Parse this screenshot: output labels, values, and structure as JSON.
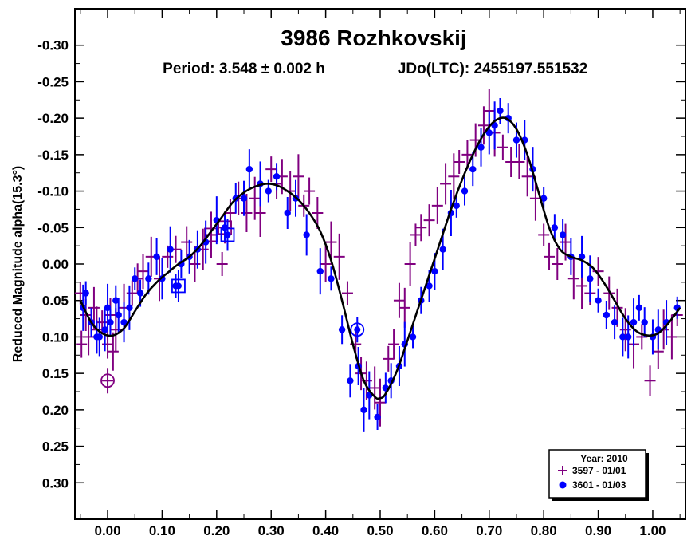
{
  "chart_data": {
    "type": "scatter",
    "title": "3986 Rozhkovskij",
    "period_text": "Period: 3.548 ± 0.002 h",
    "epoch_text": "JDo(LTC): 2455197.551532",
    "ylabel": "Reduced Magnitude alpha(15.3°)",
    "xlabel": "",
    "xlim": [
      -0.06,
      1.06
    ],
    "ylim": [
      -0.35,
      0.35
    ],
    "y_inverted": true,
    "x_ticks": [
      "0.00",
      "0.10",
      "0.20",
      "0.30",
      "0.40",
      "0.50",
      "0.60",
      "0.70",
      "0.80",
      "0.90",
      "1.00"
    ],
    "x_tick_values": [
      0,
      0.1,
      0.2,
      0.3,
      0.4,
      0.5,
      0.6,
      0.7,
      0.8,
      0.9,
      1.0
    ],
    "y_ticks": [
      "-0.30",
      "-0.25",
      "-0.20",
      "-0.15",
      "-0.10",
      "-0.05",
      "0.00",
      "0.05",
      "0.10",
      "0.15",
      "0.20",
      "0.25",
      "0.30"
    ],
    "y_tick_values": [
      -0.3,
      -0.25,
      -0.2,
      -0.15,
      -0.1,
      -0.05,
      0.0,
      0.05,
      0.1,
      0.15,
      0.2,
      0.25,
      0.3
    ],
    "legend": {
      "title": "Year: 2010",
      "placement": "bottom-right"
    },
    "colors": {
      "axis": "#000000",
      "curve": "#000000",
      "series1": "#800080",
      "series2": "#0000ff"
    },
    "series": [
      {
        "name": "3597 - 01/01",
        "marker": "plus",
        "color": "#800080",
        "points": [
          [
            -0.05,
            0.04
          ],
          [
            -0.048,
            0.11
          ],
          [
            -0.04,
            0.07
          ],
          [
            -0.035,
            0.1
          ],
          [
            -0.025,
            0.06
          ],
          [
            -0.02,
            0.09
          ],
          [
            -0.01,
            0.08
          ],
          [
            0.0,
            0.11
          ],
          [
            0.005,
            0.07
          ],
          [
            0.01,
            0.12
          ],
          [
            0.015,
            0.09
          ],
          [
            0.03,
            0.06
          ],
          [
            0.045,
            0.04
          ],
          [
            0.055,
            0.02
          ],
          [
            0.065,
            0.01
          ],
          [
            0.08,
            -0.01
          ],
          [
            0.095,
            0.02
          ],
          [
            0.11,
            -0.01
          ],
          [
            0.125,
            -0.02
          ],
          [
            0.145,
            -0.03
          ],
          [
            0.16,
            0.0
          ],
          [
            0.175,
            -0.02
          ],
          [
            0.19,
            -0.04
          ],
          [
            0.21,
            0.0
          ],
          [
            0.225,
            -0.07
          ],
          [
            0.24,
            -0.09
          ],
          [
            0.255,
            -0.07
          ],
          [
            0.27,
            -0.09
          ],
          [
            0.28,
            -0.07
          ],
          [
            0.3,
            -0.13
          ],
          [
            0.31,
            -0.11
          ],
          [
            0.32,
            -0.12
          ],
          [
            0.335,
            -0.1
          ],
          [
            0.35,
            -0.12
          ],
          [
            0.36,
            -0.08
          ],
          [
            0.37,
            -0.1
          ],
          [
            0.385,
            -0.07
          ],
          [
            0.4,
            0.0
          ],
          [
            0.41,
            -0.03
          ],
          [
            0.425,
            -0.01
          ],
          [
            0.44,
            0.04
          ],
          [
            0.455,
            0.11
          ],
          [
            0.465,
            0.15
          ],
          [
            0.475,
            0.16
          ],
          [
            0.49,
            0.17
          ],
          [
            0.5,
            0.19
          ],
          [
            0.515,
            0.13
          ],
          [
            0.525,
            0.11
          ],
          [
            0.535,
            0.05
          ],
          [
            0.545,
            0.06
          ],
          [
            0.555,
            0.0
          ],
          [
            0.565,
            -0.04
          ],
          [
            0.575,
            -0.05
          ],
          [
            0.59,
            -0.06
          ],
          [
            0.605,
            -0.08
          ],
          [
            0.62,
            -0.11
          ],
          [
            0.635,
            -0.12
          ],
          [
            0.645,
            -0.14
          ],
          [
            0.66,
            -0.15
          ],
          [
            0.675,
            -0.17
          ],
          [
            0.69,
            -0.19
          ],
          [
            0.7,
            -0.21
          ],
          [
            0.71,
            -0.18
          ],
          [
            0.725,
            -0.16
          ],
          [
            0.74,
            -0.14
          ],
          [
            0.755,
            -0.14
          ],
          [
            0.77,
            -0.12
          ],
          [
            0.785,
            -0.09
          ],
          [
            0.8,
            -0.04
          ],
          [
            0.81,
            -0.01
          ],
          [
            0.825,
            0.0
          ],
          [
            0.84,
            -0.03
          ],
          [
            0.855,
            0.02
          ],
          [
            0.87,
            0.03
          ],
          [
            0.885,
            0.04
          ],
          [
            0.9,
            0.01
          ],
          [
            0.92,
            0.04
          ],
          [
            0.935,
            0.06
          ],
          [
            0.95,
            0.09
          ],
          [
            0.965,
            0.11
          ],
          [
            0.98,
            0.1
          ],
          [
            0.995,
            0.16
          ],
          [
            1.01,
            0.12
          ],
          [
            1.02,
            0.09
          ],
          [
            1.035,
            0.1
          ],
          [
            1.045,
            0.07
          ]
        ],
        "circled": [
          [
            0.0,
            0.16
          ]
        ],
        "boxed": [
          [
            0.19,
            -0.04
          ],
          [
            0.215,
            -0.05
          ]
        ]
      },
      {
        "name": "3601 - 01/03",
        "marker": "dot",
        "color": "#0000ff",
        "points": [
          [
            -0.045,
            0.06
          ],
          [
            -0.04,
            0.04
          ],
          [
            -0.03,
            0.08
          ],
          [
            -0.02,
            0.1
          ],
          [
            -0.015,
            0.1
          ],
          [
            -0.005,
            0.09
          ],
          [
            0.0,
            0.06
          ],
          [
            0.005,
            0.08
          ],
          [
            0.015,
            0.05
          ],
          [
            0.02,
            0.07
          ],
          [
            0.03,
            0.08
          ],
          [
            0.04,
            0.06
          ],
          [
            0.05,
            0.02
          ],
          [
            0.06,
            0.04
          ],
          [
            0.075,
            0.02
          ],
          [
            0.09,
            -0.01
          ],
          [
            0.1,
            0.02
          ],
          [
            0.115,
            -0.02
          ],
          [
            0.125,
            0.03
          ],
          [
            0.135,
            0.0
          ],
          [
            0.15,
            -0.01
          ],
          [
            0.165,
            -0.02
          ],
          [
            0.18,
            -0.03
          ],
          [
            0.2,
            -0.06
          ],
          [
            0.215,
            -0.05
          ],
          [
            0.235,
            -0.09
          ],
          [
            0.25,
            -0.09
          ],
          [
            0.26,
            -0.13
          ],
          [
            0.28,
            -0.11
          ],
          [
            0.295,
            -0.1
          ],
          [
            0.31,
            -0.12
          ],
          [
            0.33,
            -0.07
          ],
          [
            0.345,
            -0.09
          ],
          [
            0.365,
            -0.04
          ],
          [
            0.39,
            0.01
          ],
          [
            0.41,
            0.02
          ],
          [
            0.43,
            0.09
          ],
          [
            0.445,
            0.16
          ],
          [
            0.46,
            0.14
          ],
          [
            0.47,
            0.2
          ],
          [
            0.48,
            0.18
          ],
          [
            0.495,
            0.21
          ],
          [
            0.51,
            0.17
          ],
          [
            0.52,
            0.16
          ],
          [
            0.535,
            0.14
          ],
          [
            0.545,
            0.11
          ],
          [
            0.56,
            0.1
          ],
          [
            0.575,
            0.05
          ],
          [
            0.59,
            0.03
          ],
          [
            0.6,
            0.01
          ],
          [
            0.615,
            -0.02
          ],
          [
            0.63,
            -0.07
          ],
          [
            0.64,
            -0.08
          ],
          [
            0.655,
            -0.1
          ],
          [
            0.67,
            -0.13
          ],
          [
            0.685,
            -0.16
          ],
          [
            0.7,
            -0.18
          ],
          [
            0.71,
            -0.19
          ],
          [
            0.72,
            -0.21
          ],
          [
            0.735,
            -0.2
          ],
          [
            0.75,
            -0.17
          ],
          [
            0.765,
            -0.17
          ],
          [
            0.78,
            -0.13
          ],
          [
            0.8,
            -0.09
          ],
          [
            0.82,
            -0.05
          ],
          [
            0.835,
            -0.04
          ],
          [
            0.85,
            -0.01
          ],
          [
            0.87,
            -0.01
          ],
          [
            0.885,
            0.02
          ],
          [
            0.9,
            0.05
          ],
          [
            0.915,
            0.07
          ],
          [
            0.93,
            0.08
          ],
          [
            0.945,
            0.1
          ],
          [
            0.955,
            0.1
          ],
          [
            0.965,
            0.08
          ],
          [
            0.975,
            0.06
          ],
          [
            0.985,
            0.08
          ],
          [
            1.0,
            0.1
          ],
          [
            1.01,
            0.09
          ],
          [
            1.025,
            0.08
          ],
          [
            1.045,
            0.06
          ]
        ],
        "circled": [
          [
            0.458,
            0.09
          ]
        ],
        "boxed": [
          [
            0.13,
            0.03
          ],
          [
            0.22,
            -0.04
          ]
        ]
      }
    ],
    "fit_curve": [
      [
        -0.05,
        0.05
      ],
      [
        -0.03,
        0.08
      ],
      [
        -0.01,
        0.095
      ],
      [
        0.01,
        0.098
      ],
      [
        0.03,
        0.088
      ],
      [
        0.05,
        0.065
      ],
      [
        0.07,
        0.042
      ],
      [
        0.09,
        0.025
      ],
      [
        0.11,
        0.012
      ],
      [
        0.13,
        0.0
      ],
      [
        0.15,
        -0.01
      ],
      [
        0.17,
        -0.025
      ],
      [
        0.19,
        -0.045
      ],
      [
        0.21,
        -0.065
      ],
      [
        0.23,
        -0.085
      ],
      [
        0.25,
        -0.098
      ],
      [
        0.27,
        -0.106
      ],
      [
        0.29,
        -0.11
      ],
      [
        0.31,
        -0.108
      ],
      [
        0.33,
        -0.1
      ],
      [
        0.35,
        -0.088
      ],
      [
        0.37,
        -0.07
      ],
      [
        0.39,
        -0.045
      ],
      [
        0.41,
        -0.005
      ],
      [
        0.43,
        0.05
      ],
      [
        0.45,
        0.11
      ],
      [
        0.47,
        0.16
      ],
      [
        0.49,
        0.182
      ],
      [
        0.5,
        0.184
      ],
      [
        0.51,
        0.178
      ],
      [
        0.53,
        0.148
      ],
      [
        0.55,
        0.105
      ],
      [
        0.57,
        0.06
      ],
      [
        0.59,
        0.015
      ],
      [
        0.61,
        -0.03
      ],
      [
        0.63,
        -0.075
      ],
      [
        0.65,
        -0.115
      ],
      [
        0.67,
        -0.15
      ],
      [
        0.69,
        -0.178
      ],
      [
        0.71,
        -0.196
      ],
      [
        0.73,
        -0.2
      ],
      [
        0.75,
        -0.185
      ],
      [
        0.77,
        -0.15
      ],
      [
        0.79,
        -0.1
      ],
      [
        0.81,
        -0.05
      ],
      [
        0.83,
        -0.02
      ],
      [
        0.85,
        -0.01
      ],
      [
        0.87,
        -0.005
      ],
      [
        0.89,
        0.005
      ],
      [
        0.91,
        0.025
      ],
      [
        0.93,
        0.05
      ],
      [
        0.95,
        0.075
      ],
      [
        0.97,
        0.092
      ],
      [
        0.99,
        0.098
      ],
      [
        1.01,
        0.095
      ],
      [
        1.03,
        0.08
      ],
      [
        1.05,
        0.06
      ]
    ]
  }
}
